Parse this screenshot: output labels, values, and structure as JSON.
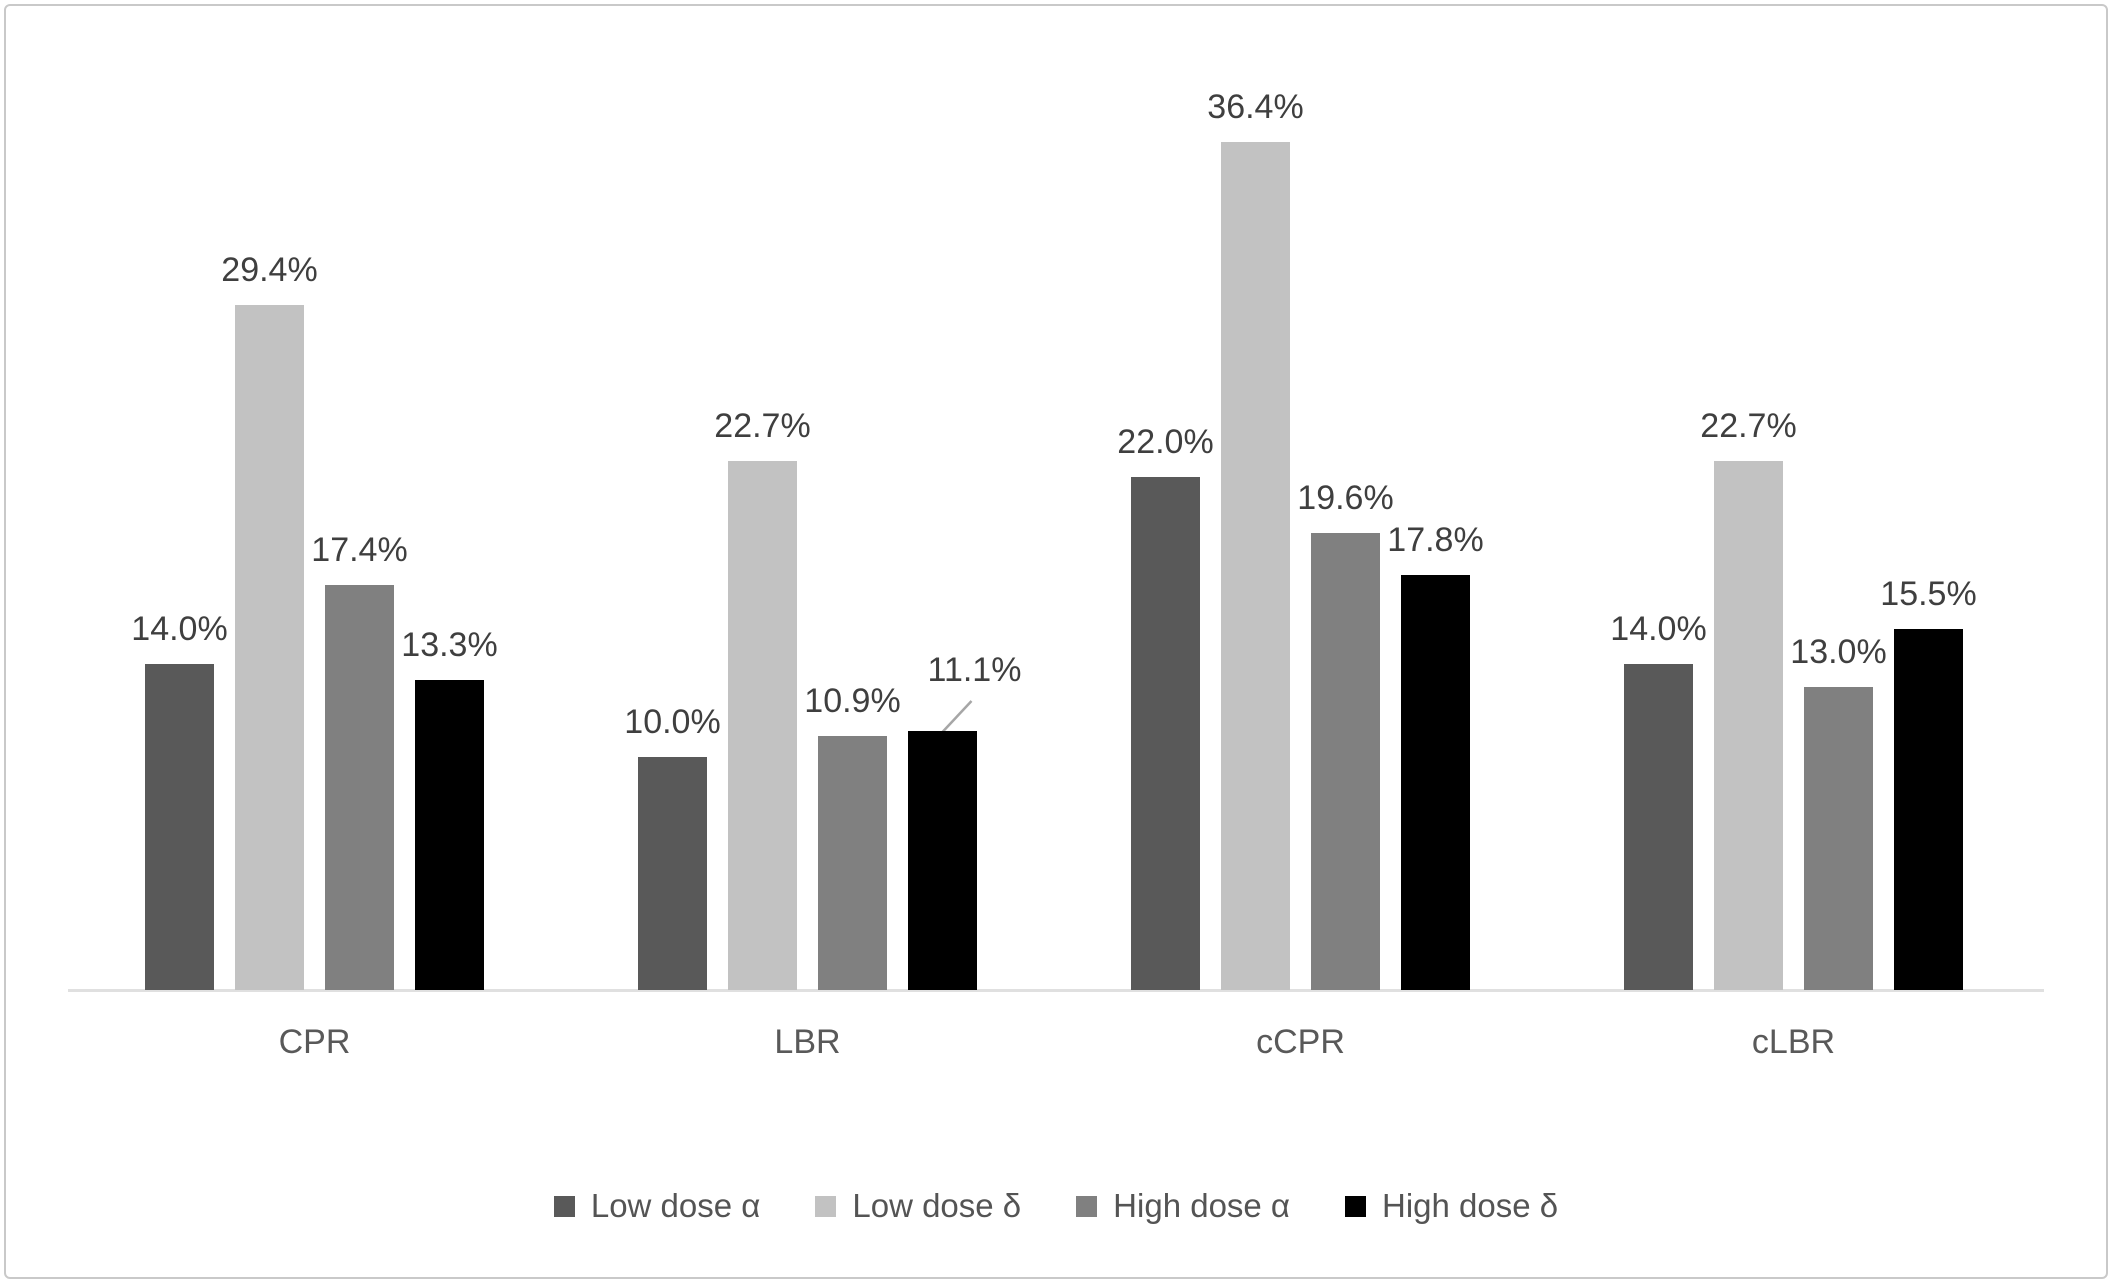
{
  "frame": {
    "border_color": "#c9c9c9",
    "background": "#ffffff"
  },
  "chart_data": {
    "type": "bar",
    "title": "",
    "xlabel": "",
    "ylabel": "",
    "categories": [
      "CPR",
      "LBR",
      "cCPR",
      "cLBR"
    ],
    "series": [
      {
        "name": "Low dose α",
        "color": "#595959",
        "values": [
          14.0,
          10.0,
          22.0,
          14.0
        ],
        "labels": [
          "14.0%",
          "10.0%",
          "22.0%",
          "14.0%"
        ]
      },
      {
        "name": "Low dose δ",
        "color": "#c2c2c2",
        "values": [
          29.4,
          22.7,
          36.4,
          22.7
        ],
        "labels": [
          "29.4%",
          "22.7%",
          "36.4%",
          "22.7%"
        ]
      },
      {
        "name": "High dose α",
        "color": "#808080",
        "values": [
          17.4,
          10.9,
          19.6,
          13.0
        ],
        "labels": [
          "17.4%",
          "10.9%",
          "19.6%",
          "13.0%"
        ]
      },
      {
        "name": "High dose δ",
        "color": "#000000",
        "values": [
          13.3,
          11.1,
          17.8,
          15.5
        ],
        "labels": [
          "13.3%",
          "11.1%",
          "17.8%",
          "15.5%"
        ]
      }
    ],
    "data_label_format": "0.0%",
    "value_axis": {
      "visible": false,
      "implied_range": [
        0,
        40
      ]
    },
    "grid": false,
    "legend_position": "bottom",
    "axis_line_color": "#e0e0e0",
    "label_color": "#3f3f3f",
    "category_label_color": "#595959",
    "leader_line_color": "#a6a6a6",
    "callouts": [
      {
        "series_index": 3,
        "category_index": 1,
        "dx": 32,
        "dy": -26,
        "leader_line": true
      }
    ]
  }
}
